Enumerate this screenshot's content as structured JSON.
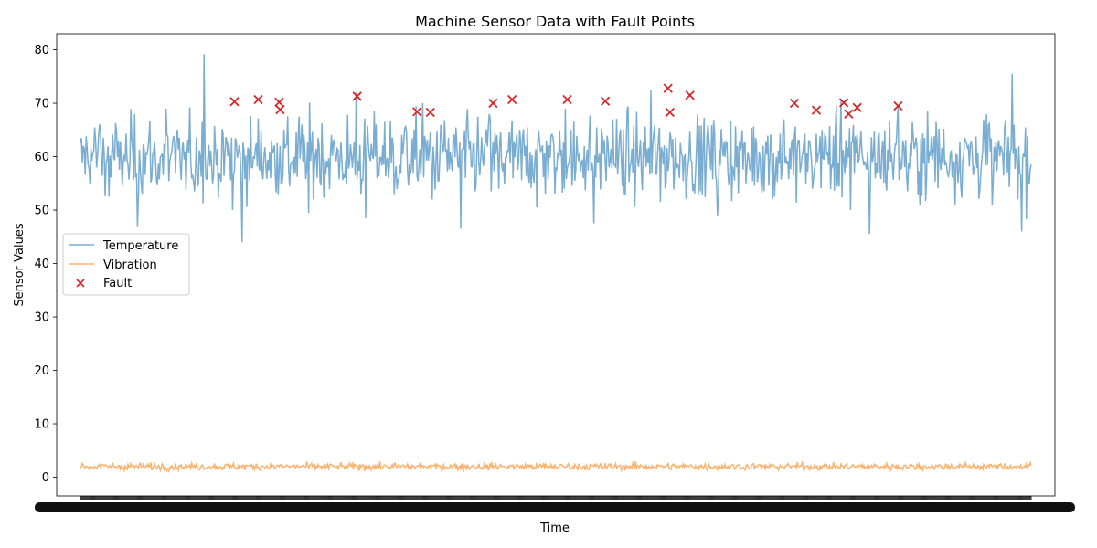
{
  "chart_data": {
    "type": "line",
    "title": "Machine Sensor Data with Fault Points",
    "xlabel": "Time",
    "ylabel": "Sensor Values",
    "ylim": [
      -3.5,
      83
    ],
    "yticks": [
      0,
      10,
      20,
      30,
      40,
      50,
      60,
      70,
      80
    ],
    "xlim": [
      -25,
      1025
    ],
    "x_tick_labels_overlapping": true,
    "legend_placement": "center-left",
    "grid": false,
    "series": [
      {
        "name": "Temperature",
        "type": "line",
        "color": "#1f77b4",
        "alpha": 0.6,
        "x": [
          0,
          10,
          20,
          30,
          40,
          50,
          60,
          70,
          80,
          90,
          100,
          110,
          120,
          130,
          140,
          150,
          160,
          170,
          180,
          190,
          200,
          210,
          220,
          230,
          240,
          250,
          260,
          270,
          280,
          290,
          300,
          310,
          320,
          330,
          340,
          350,
          360,
          370,
          380,
          390,
          400,
          410,
          420,
          430,
          440,
          450,
          460,
          470,
          480,
          490,
          500,
          510,
          520,
          530,
          540,
          550,
          560,
          570,
          580,
          590,
          600,
          610,
          620,
          630,
          640,
          650,
          660,
          670,
          680,
          690,
          700,
          710,
          720,
          730,
          740,
          750,
          760,
          770,
          780,
          790,
          800,
          810,
          820,
          830,
          840,
          850,
          860,
          870,
          880,
          890,
          900,
          910,
          920,
          930,
          940,
          950,
          960,
          970,
          980,
          990,
          1000
        ],
        "y": [
          62.5,
          55.0,
          66.0,
          52.5,
          63.0,
          58.5,
          47.0,
          60.5,
          55.5,
          69.0,
          57.0,
          61.0,
          53.5,
          79.2,
          56.5,
          64.5,
          50.0,
          44.0,
          58.0,
          65.0,
          56.0,
          62.0,
          54.5,
          67.5,
          49.5,
          63.5,
          58.0,
          61.5,
          55.0,
          72.0,
          48.5,
          60.0,
          66.5,
          53.0,
          62.5,
          57.0,
          70.0,
          52.0,
          64.0,
          59.0,
          46.5,
          63.0,
          56.5,
          68.0,
          54.0,
          61.0,
          57.5,
          65.5,
          50.5,
          63.0,
          58.0,
          69.0,
          55.5,
          62.0,
          47.5,
          60.5,
          67.0,
          54.5,
          61.5,
          57.0,
          72.5,
          51.5,
          64.5,
          56.0,
          60.0,
          53.0,
          66.0,
          49.0,
          62.5,
          58.0,
          55.0,
          63.5,
          59.5,
          52.5,
          67.0,
          56.5,
          61.0,
          54.0,
          65.0,
          58.5,
          70.5,
          50.0,
          62.0,
          45.5,
          64.5,
          57.5,
          69.5,
          53.5,
          61.5,
          56.0,
          66.5,
          59.0,
          51.0,
          63.5,
          58.0,
          67.0,
          55.0,
          60.5,
          75.5,
          46.0,
          58.5
        ],
        "note": "dense noisy signal; values sampled approximately, mean ~60, range ~44-79"
      },
      {
        "name": "Vibration",
        "type": "line",
        "color": "#ff7f0e",
        "alpha": 0.6,
        "mean": 2.0,
        "range": [
          0.8,
          3.5
        ],
        "note": "dense noisy signal near 2"
      },
      {
        "name": "Fault",
        "type": "scatter",
        "marker": "x",
        "color": "#d62728",
        "x": [
          162,
          187,
          209,
          210,
          291,
          354,
          368,
          434,
          454,
          512,
          552,
          618,
          620,
          641,
          751,
          774,
          803,
          808,
          817,
          860
        ],
        "y": [
          70.3,
          70.7,
          70.2,
          68.8,
          71.3,
          68.4,
          68.3,
          70.0,
          70.7,
          70.7,
          70.4,
          72.8,
          68.3,
          71.5,
          70.0,
          68.7,
          70.1,
          68.0,
          69.2,
          69.5
        ]
      }
    ]
  }
}
